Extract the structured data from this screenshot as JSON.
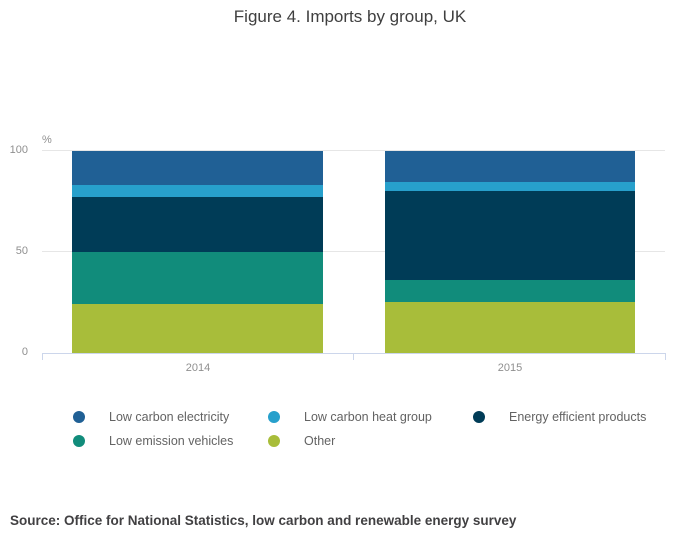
{
  "title": "Figure 4. Imports by group, UK",
  "y_axis": {
    "unit": "%",
    "ticks": [
      "100",
      "50",
      "0"
    ]
  },
  "source": "Source: Office for National Statistics, low carbon and renewable energy survey",
  "colors": {
    "axis_line": "#ccd6eb",
    "gridline": "#e6e6e6",
    "title_text": "#3f3f3f",
    "axis_text": "#8f8f8f",
    "legend_text": "#636363",
    "source_text": "#414042"
  },
  "chart_data": {
    "type": "bar",
    "stacked": true,
    "stacking": "percent",
    "title": "Figure 4. Imports by group, UK",
    "ylabel": "%",
    "ylim": [
      0,
      100
    ],
    "yticks": [
      0,
      50,
      100
    ],
    "grid": true,
    "legend_position": "bottom",
    "categories": [
      "2014",
      "2015"
    ],
    "stack_order_top_to_bottom": [
      "Low carbon electricity",
      "Low carbon heat group",
      "Energy efficient products",
      "Low emission vehicles",
      "Other"
    ],
    "series": [
      {
        "name": "Low carbon electricity",
        "color": "#206095",
        "values": [
          17,
          15.5
        ]
      },
      {
        "name": "Low carbon heat group",
        "color": "#27a0cc",
        "values": [
          6,
          4.5
        ]
      },
      {
        "name": "Energy efficient products",
        "color": "#003c57",
        "values": [
          27,
          44
        ]
      },
      {
        "name": "Low emission vehicles",
        "color": "#118c7b",
        "values": [
          26,
          11
        ]
      },
      {
        "name": "Other",
        "color": "#a8bd3a",
        "values": [
          24,
          25
        ]
      }
    ]
  }
}
